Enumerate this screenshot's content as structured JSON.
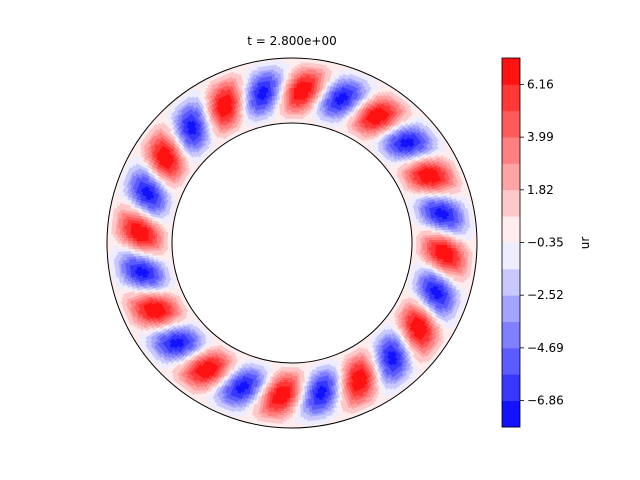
{
  "chart_data": {
    "type": "heatmap",
    "geometry": "annulus",
    "title": "t = 2.800e+00",
    "colorbar": {
      "label": "ur",
      "ticks": [
        "6.16",
        "3.99",
        "1.82",
        "−0.35",
        "−2.52",
        "−4.69",
        "−6.86"
      ],
      "tick_values": [
        6.16,
        3.99,
        1.82,
        -0.35,
        -2.52,
        -4.69,
        -6.86
      ],
      "range": [
        -7.95,
        7.25
      ],
      "levels": 14,
      "colormap": "bwr",
      "color_low": "#0000ff",
      "color_mid": "#ffffff",
      "color_high": "#ff0000"
    },
    "field": {
      "azimuthal_mode": 12,
      "spiral_twist_rad": 0.75,
      "amplitude": 7.25,
      "inner_radius_ratio": 0.65
    }
  }
}
